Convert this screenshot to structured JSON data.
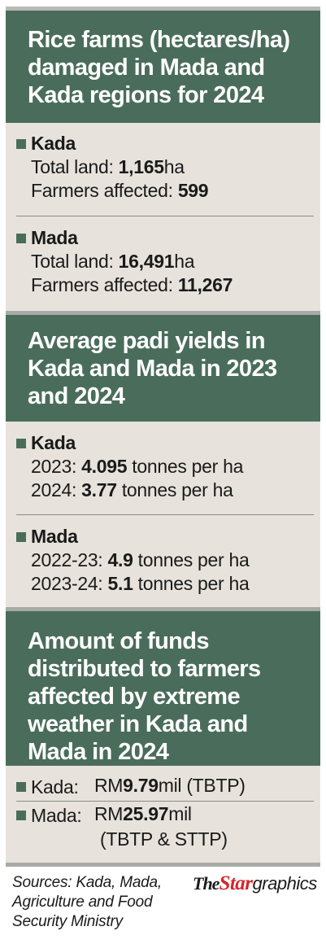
{
  "sections": [
    {
      "title": "Rice farms (hectares/ha)\ndamaged in Mada and\nKada regions for 2024",
      "groups": [
        {
          "name": "Kada",
          "rows": [
            {
              "pre": "Total land: ",
              "val": "1,165",
              "post": "ha"
            },
            {
              "pre": "Farmers affected: ",
              "val": "599",
              "post": ""
            }
          ]
        },
        {
          "name": "Mada",
          "rows": [
            {
              "pre": "Total land: ",
              "val": "16,491",
              "post": "ha"
            },
            {
              "pre": "Farmers affected: ",
              "val": "11,267",
              "post": ""
            }
          ]
        }
      ]
    },
    {
      "title": "Average padi yields in\nKada and Mada in 2023\nand 2024",
      "groups": [
        {
          "name": "Kada",
          "rows": [
            {
              "pre": "2023: ",
              "val": "4.095",
              "post": " tonnes per ha"
            },
            {
              "pre": "2024: ",
              "val": "3.77",
              "post": " tonnes per ha"
            }
          ]
        },
        {
          "name": "Mada",
          "rows": [
            {
              "pre": "2022-23: ",
              "val": "4.9",
              "post": " tonnes per ha"
            },
            {
              "pre": "2023-24: ",
              "val": "5.1",
              "post": " tonnes per ha"
            }
          ]
        }
      ]
    },
    {
      "title": "Amount of funds\ndistributed to farmers\naffected by extreme\nweather in Kada and\nMada in 2024",
      "funds": [
        {
          "name": "Kada:",
          "pre": "RM",
          "val": "9.79",
          "post": "mil (TBTP)",
          "extra": ""
        },
        {
          "name": "Mada:",
          "pre": "RM",
          "val": "25.97",
          "post": "mil",
          "extra": "(TBTP & STTP)"
        }
      ]
    }
  ],
  "sources": "Sources: Kada, Mada,\nAgriculture and Food\nSecurity Ministry",
  "logo": {
    "the": "The",
    "star": "Star",
    "graphics": "graphics"
  },
  "colors": {
    "header": "#4a6d5b",
    "panel": "#e7e3dc",
    "logo_red": "#d4262d"
  }
}
